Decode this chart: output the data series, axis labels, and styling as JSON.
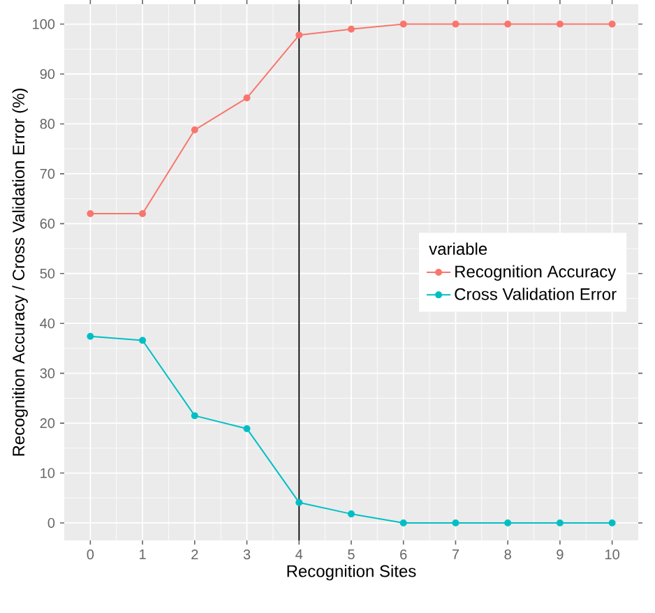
{
  "chart_data": {
    "type": "line",
    "xlabel": "Recognition Sites",
    "ylabel": "Recognition Accuracy / Cross Validation Error (%)",
    "legend_title": "variable",
    "x": [
      0,
      1,
      2,
      3,
      4,
      5,
      6,
      7,
      8,
      9,
      10
    ],
    "series": [
      {
        "name": "Recognition Accuracy",
        "color": "#f8766d",
        "values": [
          62,
          62,
          78.8,
          85.2,
          97.8,
          99,
          100,
          100,
          100,
          100,
          100
        ]
      },
      {
        "name": "Cross Validation Error",
        "color": "#00bfc4",
        "values": [
          37.4,
          36.6,
          21.5,
          18.9,
          4.1,
          1.8,
          0,
          0,
          0,
          0,
          0
        ]
      }
    ],
    "xlim": [
      -0.5,
      10.5
    ],
    "ylim": [
      -3.5,
      104
    ],
    "xticks": [
      0,
      1,
      2,
      3,
      4,
      5,
      6,
      7,
      8,
      9,
      10
    ],
    "yticks": [
      0,
      10,
      20,
      30,
      40,
      50,
      60,
      70,
      80,
      90,
      100
    ],
    "grid": true,
    "legend": "right",
    "marker": "circle",
    "line_style": "solid",
    "ref_lines": [
      {
        "axis": "x",
        "value": 4,
        "color": "#000000"
      }
    ]
  }
}
